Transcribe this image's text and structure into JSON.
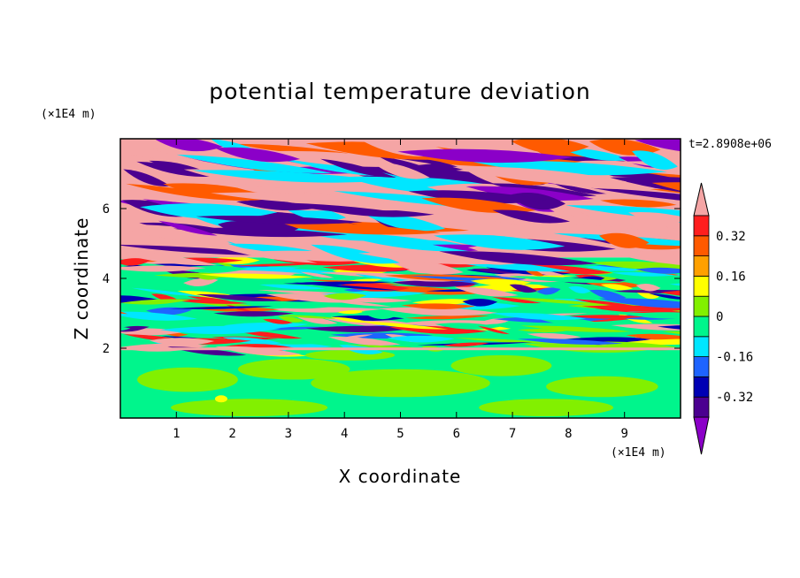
{
  "chart_data": {
    "type": "heatmap",
    "title": "potential temperature deviation",
    "xlabel": "X coordinate",
    "ylabel": "Z coordinate",
    "x_unit": "(×1E4 m)",
    "y_unit": "(×1E4 m)",
    "time_label": "t=2.8908e+06",
    "xlim": [
      0,
      10
    ],
    "ylim": [
      0,
      8
    ],
    "x_ticks": [
      "1",
      "2",
      "3",
      "4",
      "5",
      "6",
      "7",
      "8",
      "9"
    ],
    "x_tick_values": [
      1,
      2,
      3,
      4,
      5,
      6,
      7,
      8,
      9
    ],
    "y_ticks": [
      "2",
      "4",
      "6"
    ],
    "y_tick_values": [
      2,
      4,
      6
    ],
    "colorbar": {
      "levels": [
        -0.4,
        -0.32,
        -0.24,
        -0.16,
        -0.08,
        0,
        0.08,
        0.16,
        0.24,
        0.32,
        0.4
      ],
      "colors": [
        "#8b00c8",
        "#4b0090",
        "#0000b4",
        "#1e64ff",
        "#00e6ff",
        "#00f58c",
        "#82f000",
        "#ffff00",
        "#ffa000",
        "#ff5a00",
        "#ff1e1e",
        "#f5a5a5"
      ],
      "extend": "both",
      "tick_labels": [
        "0.32",
        "0.16",
        "0",
        "-0.16",
        "-0.32"
      ],
      "tick_values": [
        0.32,
        0.16,
        0,
        -0.16,
        -0.32
      ]
    },
    "regions": [
      {
        "z_range": [
          0,
          2
        ],
        "dominant_range": [
          -0.08,
          0.08
        ]
      },
      {
        "z_range": [
          2,
          4.5
        ],
        "dominant_range": [
          -0.4,
          0.4
        ]
      },
      {
        "z_range": [
          4.5,
          8
        ],
        "dominant_range_banded": [
          -0.4,
          0.4
        ]
      }
    ]
  }
}
